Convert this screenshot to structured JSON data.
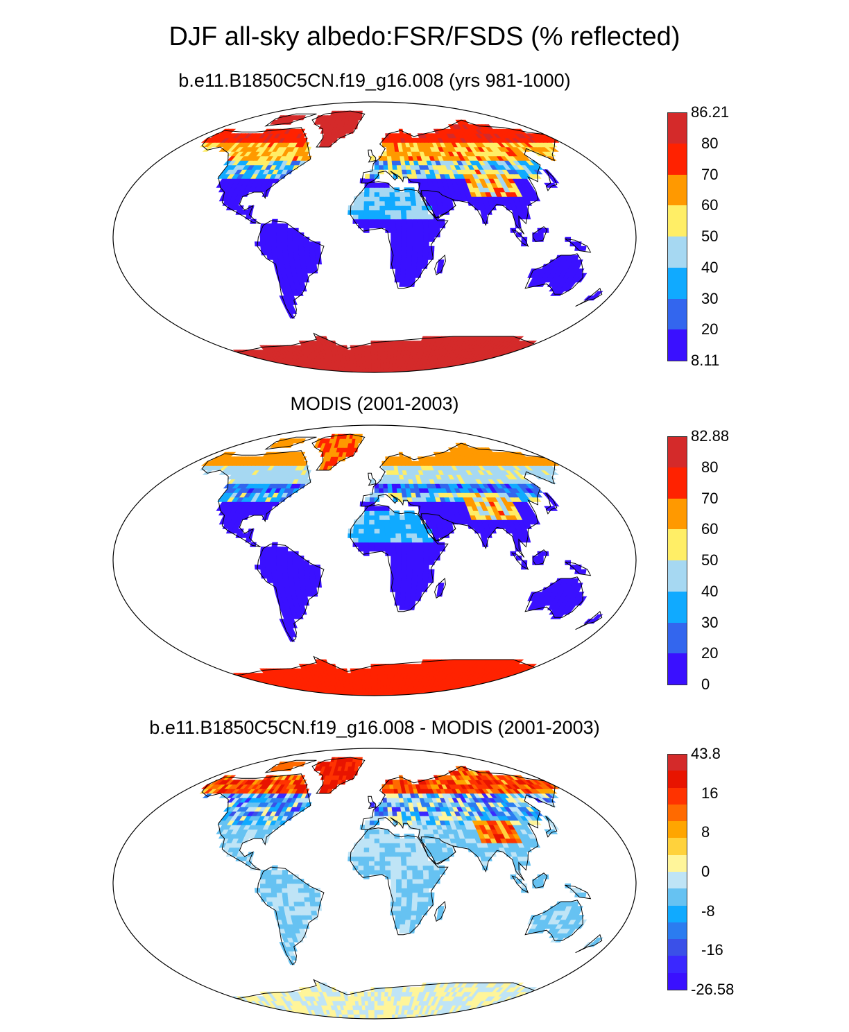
{
  "title": "DJF all-sky albedo:FSR/FSDS (% reflected)",
  "panels": [
    {
      "id": "model",
      "title": "b.e11.B1850C5CN.f19_g16.008 (yrs 981-1000)",
      "colorbar": {
        "labels": [
          "86.21",
          "80",
          "70",
          "60",
          "50",
          "40",
          "30",
          "20",
          "8.11"
        ],
        "colors": [
          "#d42a2a",
          "#ff2200",
          "#ff9900",
          "#ffee66",
          "#a6d8f2",
          "#10aaff",
          "#3366ee",
          "#3a10ff"
        ]
      },
      "scheme": "abs"
    },
    {
      "id": "obs",
      "title": "MODIS (2001-2003)",
      "colorbar": {
        "labels": [
          "82.88",
          "80",
          "70",
          "60",
          "50",
          "40",
          "30",
          "20",
          "0"
        ],
        "colors": [
          "#d42a2a",
          "#ff2200",
          "#ff9900",
          "#ffee66",
          "#a6d8f2",
          "#10aaff",
          "#3366ee",
          "#3a10ff"
        ]
      },
      "scheme": "obs"
    },
    {
      "id": "diff",
      "title": "b.e11.B1850C5CN.f19_g16.008 - MODIS (2001-2003)",
      "colorbar": {
        "labels": [
          "43.8",
          "",
          "16",
          "",
          "8",
          "",
          "0",
          "",
          "-8",
          "",
          "-16",
          "",
          "-26.58"
        ],
        "colors": [
          "#d42a2a",
          "#e81400",
          "#ff3300",
          "#ff6a00",
          "#ffa500",
          "#ffd23c",
          "#fff59a",
          "#bfe4f6",
          "#66c2f2",
          "#10aaff",
          "#2b7cf0",
          "#3a50e8",
          "#3a28ff",
          "#3a10ff"
        ]
      },
      "scheme": "diff"
    }
  ]
}
